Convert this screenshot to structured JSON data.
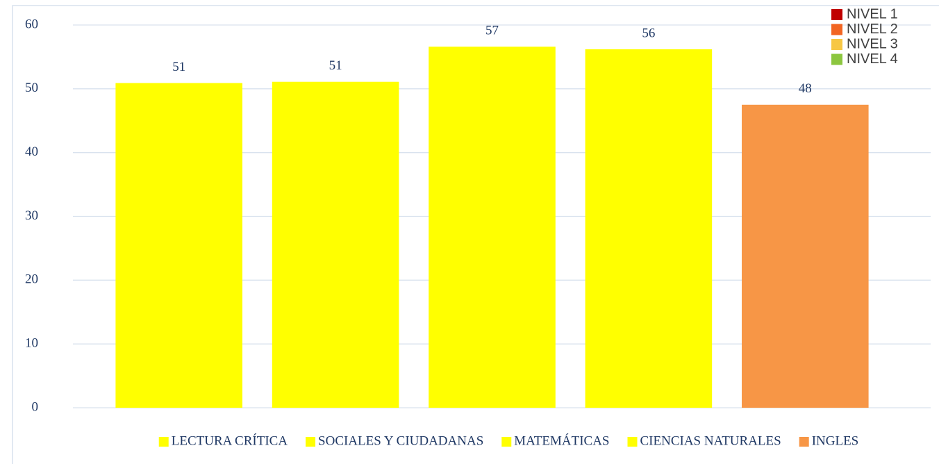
{
  "chart_data": {
    "type": "bar",
    "categories": [
      "LECTURA CRÍTICA",
      "SOCIALES Y CIUDADANAS",
      "MATEMÁTICAS",
      "CIENCIAS NATURALES",
      "INGLES"
    ],
    "values": [
      50.9,
      51.1,
      56.6,
      56.2,
      47.5
    ],
    "value_labels": [
      "51",
      "51",
      "57",
      "56",
      "48"
    ],
    "colors": [
      "#ffff00",
      "#ffff00",
      "#ffff00",
      "#ffff00",
      "#f79646"
    ],
    "ylim": [
      0,
      60
    ],
    "yticks": [
      0,
      10,
      20,
      30,
      40,
      50,
      60
    ],
    "grid": true,
    "legend": "bottom",
    "level_legend": [
      {
        "name": "NIVEL 1",
        "color": "#c00000"
      },
      {
        "name": "NIVEL 2",
        "color": "#f26522"
      },
      {
        "name": "NIVEL 3",
        "color": "#f7c744"
      },
      {
        "name": "NIVEL 4",
        "color": "#8cc63f"
      }
    ]
  }
}
